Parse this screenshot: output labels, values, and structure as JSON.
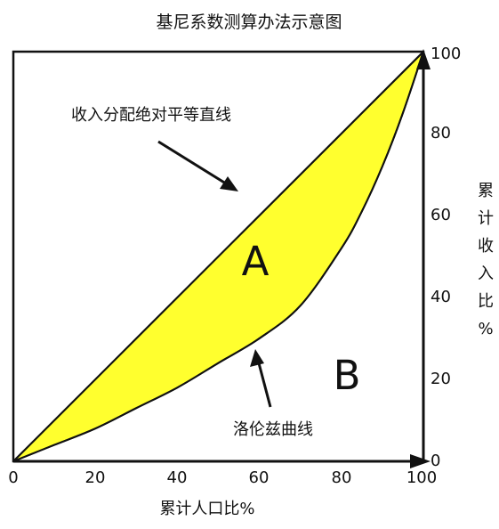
{
  "title": "基尼系数测算办法示意图",
  "x_axis": {
    "label": "累计人口比%",
    "ticks": [
      "0",
      "20",
      "40",
      "60",
      "80",
      "100"
    ]
  },
  "y_axis": {
    "label": "累计收入比%",
    "ticks": [
      "0",
      "20",
      "40",
      "60",
      "80",
      "100"
    ]
  },
  "annotations": {
    "equality_line": "收入分配绝对平等直线",
    "lorenz_curve": "洛伦兹曲线"
  },
  "areas": {
    "a": "A",
    "b": "B"
  },
  "colors": {
    "area_a_fill": "#ffff2e",
    "line": "#111111",
    "background": "#ffffff"
  },
  "chart_data": {
    "type": "area",
    "x": [
      0,
      10,
      20,
      30,
      40,
      50,
      60,
      70,
      80,
      85,
      90,
      95,
      100
    ],
    "series": [
      {
        "values": [
          0,
          10,
          20,
          30,
          40,
          50,
          60,
          70,
          80,
          85,
          90,
          95,
          100
        ]
      },
      {
        "values": [
          0,
          4,
          8,
          13,
          18,
          24,
          30,
          38,
          52,
          61,
          72,
          85,
          100
        ]
      }
    ],
    "xlim": [
      0,
      100
    ],
    "ylim": [
      0,
      100
    ]
  }
}
